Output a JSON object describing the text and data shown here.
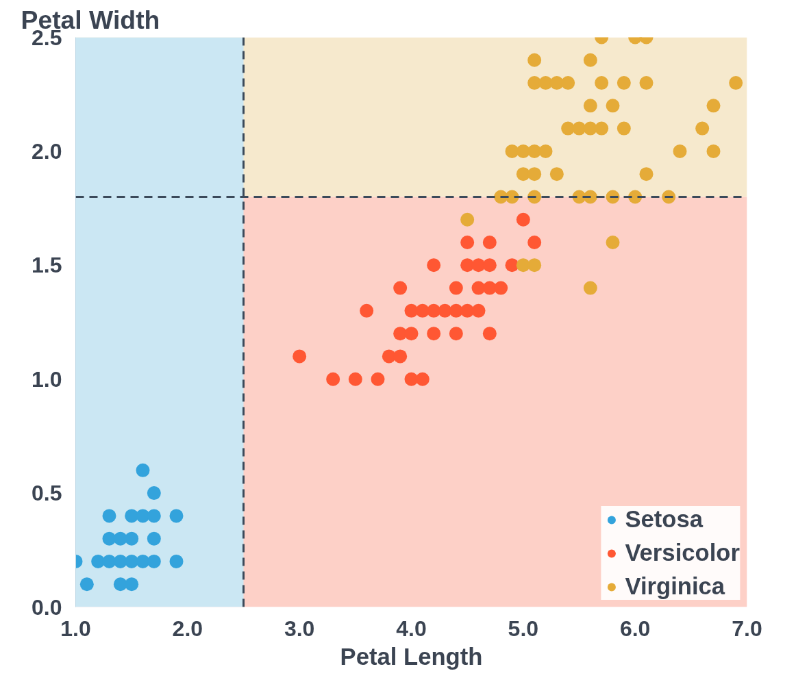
{
  "chart_data": {
    "type": "scatter",
    "xlabel": "Petal Length",
    "ylabel": "Petal Width",
    "xlim": [
      1,
      7
    ],
    "ylim": [
      0,
      2.5
    ],
    "xticks": [
      {
        "value": 1,
        "label": "1.0"
      },
      {
        "value": 2,
        "label": "2.0"
      },
      {
        "value": 3,
        "label": "3.0"
      },
      {
        "value": 4,
        "label": "4.0"
      },
      {
        "value": 5,
        "label": "5.0"
      },
      {
        "value": 6,
        "label": "6.0"
      },
      {
        "value": 7,
        "label": "7.0"
      }
    ],
    "yticks": [
      {
        "value": 0,
        "label": "0.0"
      },
      0.5,
      {
        "value": 1,
        "label": "1.0"
      },
      1.5,
      {
        "value": 2,
        "label": "2.0"
      },
      2.5
    ],
    "grid": false,
    "legend": "bottom right",
    "marker": "circle",
    "bands": [
      {
        "axis": "y",
        "from": 1.8,
        "to": 2.5,
        "color": "#f6e9cd"
      },
      {
        "axis": "y",
        "from": 0,
        "to": 1.8,
        "color": "#fdd0c7"
      },
      {
        "axis": "x",
        "from": 1,
        "to": 2.5,
        "color": "#cbe7f3"
      }
    ],
    "ref_lines": [
      {
        "axis": "x",
        "value": 2.5,
        "color": "#3b4a5a",
        "line_style": "dashed"
      },
      {
        "axis": "y",
        "value": 1.8,
        "color": "#3b4a5a",
        "line_style": "dashed"
      }
    ],
    "series": [
      {
        "name": "Setosa",
        "color": "#33a3dc",
        "x": [
          1.0,
          1.1,
          1.2,
          1.3,
          1.3,
          1.3,
          1.4,
          1.4,
          1.4,
          1.5,
          1.5,
          1.5,
          1.5,
          1.6,
          1.6,
          1.6,
          1.7,
          1.7,
          1.7,
          1.7,
          1.9,
          1.9
        ],
        "values": [
          0.2,
          0.1,
          0.2,
          0.2,
          0.3,
          0.4,
          0.1,
          0.2,
          0.3,
          0.1,
          0.2,
          0.3,
          0.4,
          0.2,
          0.4,
          0.6,
          0.2,
          0.3,
          0.4,
          0.5,
          0.2,
          0.4
        ]
      },
      {
        "name": "Versicolor",
        "color": "#ff5733",
        "x": [
          3.3,
          3.5,
          3.7,
          4.0,
          4.1,
          3.0,
          3.8,
          3.9,
          3.9,
          4.0,
          4.2,
          4.4,
          4.7,
          3.6,
          4.0,
          4.1,
          4.2,
          4.3,
          4.4,
          4.5,
          4.6,
          3.9,
          4.4,
          4.6,
          4.7,
          4.8,
          4.2,
          4.5,
          4.6,
          4.7,
          4.9,
          4.5,
          4.7,
          5.1,
          5.0
        ],
        "values": [
          1.0,
          1.0,
          1.0,
          1.0,
          1.0,
          1.1,
          1.1,
          1.1,
          1.2,
          1.2,
          1.2,
          1.2,
          1.2,
          1.3,
          1.3,
          1.3,
          1.3,
          1.3,
          1.3,
          1.3,
          1.3,
          1.4,
          1.4,
          1.4,
          1.4,
          1.4,
          1.5,
          1.5,
          1.5,
          1.5,
          1.5,
          1.6,
          1.6,
          1.6,
          1.7
        ]
      },
      {
        "name": "Virginica",
        "color": "#e5ab38",
        "x": [
          5.7,
          6.0,
          6.1,
          5.1,
          5.6,
          5.1,
          5.2,
          5.3,
          5.4,
          5.7,
          5.9,
          6.1,
          6.9,
          5.6,
          5.8,
          6.7,
          5.4,
          5.5,
          5.6,
          5.7,
          5.9,
          6.6,
          4.9,
          5.0,
          5.1,
          5.2,
          6.4,
          6.7,
          5.0,
          5.1,
          5.3,
          6.1,
          4.8,
          4.9,
          5.1,
          5.5,
          5.6,
          5.8,
          6.0,
          6.3,
          4.5,
          5.8,
          5.0,
          5.1,
          5.6
        ],
        "values": [
          2.5,
          2.5,
          2.5,
          2.4,
          2.4,
          2.3,
          2.3,
          2.3,
          2.3,
          2.3,
          2.3,
          2.3,
          2.3,
          2.2,
          2.2,
          2.2,
          2.1,
          2.1,
          2.1,
          2.1,
          2.1,
          2.1,
          2.0,
          2.0,
          2.0,
          2.0,
          2.0,
          2.0,
          1.9,
          1.9,
          1.9,
          1.9,
          1.8,
          1.8,
          1.8,
          1.8,
          1.8,
          1.8,
          1.8,
          1.8,
          1.7,
          1.6,
          1.5,
          1.5,
          1.4
        ]
      }
    ]
  }
}
